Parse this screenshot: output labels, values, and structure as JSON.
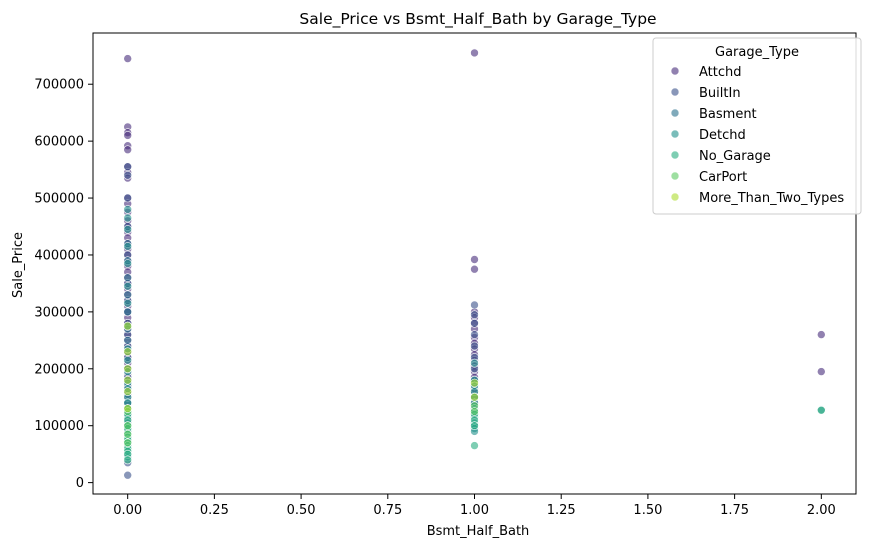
{
  "chart_data": {
    "type": "scatter",
    "title": "Sale_Price vs Bsmt_Half_Bath by Garage_Type",
    "xlabel": "Bsmt_Half_Bath",
    "ylabel": "Sale_Price",
    "xlim": [
      -0.1,
      2.1
    ],
    "ylim": [
      -20000,
      790000
    ],
    "x_ticks": [
      0.0,
      0.25,
      0.5,
      0.75,
      1.0,
      1.25,
      1.5,
      1.75,
      2.0
    ],
    "x_tick_labels": [
      "0.00",
      "0.25",
      "0.50",
      "0.75",
      "1.00",
      "1.25",
      "1.50",
      "1.75",
      "2.00"
    ],
    "y_ticks": [
      0,
      100000,
      200000,
      300000,
      400000,
      500000,
      600000,
      700000
    ],
    "y_tick_labels": [
      "0",
      "100000",
      "200000",
      "300000",
      "400000",
      "500000",
      "600000",
      "700000"
    ],
    "grid": false,
    "legend": {
      "title": "Garage_Type",
      "placement": "top-right"
    },
    "series": [
      {
        "name": "Attchd",
        "color": "#472d7b",
        "points": [
          [
            0,
            745000
          ],
          [
            0,
            625000
          ],
          [
            0,
            615000
          ],
          [
            0,
            610000
          ],
          [
            0,
            592000
          ],
          [
            0,
            585000
          ],
          [
            0,
            555000
          ],
          [
            0,
            545000
          ],
          [
            0,
            535000
          ],
          [
            0,
            500000
          ],
          [
            0,
            490000
          ],
          [
            0,
            475000
          ],
          [
            0,
            460000
          ],
          [
            0,
            450000
          ],
          [
            0,
            440000
          ],
          [
            0,
            430000
          ],
          [
            0,
            420000
          ],
          [
            0,
            410000
          ],
          [
            0,
            400000
          ],
          [
            0,
            390000
          ],
          [
            0,
            380000
          ],
          [
            0,
            370000
          ],
          [
            0,
            360000
          ],
          [
            0,
            350000
          ],
          [
            0,
            340000
          ],
          [
            0,
            330000
          ],
          [
            0,
            320000
          ],
          [
            0,
            310000
          ],
          [
            0,
            300000
          ],
          [
            0,
            290000
          ],
          [
            0,
            280000
          ],
          [
            0,
            270000
          ],
          [
            0,
            260000
          ],
          [
            0,
            250000
          ],
          [
            0,
            240000
          ],
          [
            0,
            230000
          ],
          [
            0,
            220000
          ],
          [
            0,
            210000
          ],
          [
            0,
            200000
          ],
          [
            0,
            190000
          ],
          [
            0,
            180000
          ],
          [
            0,
            170000
          ],
          [
            0,
            160000
          ],
          [
            0,
            150000
          ],
          [
            0,
            140000
          ],
          [
            0,
            130000
          ],
          [
            0,
            120000
          ],
          [
            0,
            110000
          ],
          [
            1,
            755000
          ],
          [
            1,
            392000
          ],
          [
            1,
            375000
          ],
          [
            1,
            300000
          ],
          [
            1,
            290000
          ],
          [
            1,
            280000
          ],
          [
            1,
            270000
          ],
          [
            1,
            255000
          ],
          [
            1,
            245000
          ],
          [
            1,
            235000
          ],
          [
            1,
            225000
          ],
          [
            1,
            215000
          ],
          [
            1,
            205000
          ],
          [
            1,
            195000
          ],
          [
            1,
            185000
          ],
          [
            1,
            175000
          ],
          [
            1,
            160000
          ],
          [
            1,
            150000
          ],
          [
            1,
            140000
          ],
          [
            1,
            130000
          ],
          [
            2,
            260000
          ],
          [
            2,
            195000
          ]
        ]
      },
      {
        "name": "BuiltIn",
        "color": "#3b528b",
        "points": [
          [
            0,
            555000
          ],
          [
            0,
            540000
          ],
          [
            0,
            500000
          ],
          [
            0,
            450000
          ],
          [
            0,
            400000
          ],
          [
            0,
            350000
          ],
          [
            0,
            320000
          ],
          [
            0,
            300000
          ],
          [
            0,
            280000
          ],
          [
            0,
            260000
          ],
          [
            0,
            240000
          ],
          [
            0,
            220000
          ],
          [
            0,
            200000
          ],
          [
            0,
            185000
          ],
          [
            0,
            170000
          ],
          [
            0,
            155000
          ],
          [
            0,
            35000
          ],
          [
            0,
            13000
          ],
          [
            1,
            312000
          ],
          [
            1,
            295000
          ],
          [
            1,
            280000
          ],
          [
            1,
            260000
          ],
          [
            1,
            240000
          ],
          [
            1,
            220000
          ],
          [
            1,
            200000
          ],
          [
            1,
            180000
          ],
          [
            1,
            165000
          ]
        ]
      },
      {
        "name": "Basment",
        "color": "#2c728e",
        "points": [
          [
            0,
            420000
          ],
          [
            0,
            390000
          ],
          [
            0,
            360000
          ],
          [
            0,
            330000
          ],
          [
            0,
            300000
          ],
          [
            0,
            270000
          ],
          [
            0,
            250000
          ],
          [
            0,
            230000
          ],
          [
            0,
            200000
          ],
          [
            0,
            180000
          ],
          [
            0,
            160000
          ],
          [
            0,
            140000
          ],
          [
            0,
            125000
          ],
          [
            1,
            175000
          ],
          [
            1,
            150000
          ],
          [
            1,
            135000
          ],
          [
            1,
            120000
          ]
        ]
      },
      {
        "name": "Detchd",
        "color": "#21918c",
        "points": [
          [
            0,
            480000
          ],
          [
            0,
            465000
          ],
          [
            0,
            445000
          ],
          [
            0,
            415000
          ],
          [
            0,
            385000
          ],
          [
            0,
            345000
          ],
          [
            0,
            315000
          ],
          [
            0,
            275000
          ],
          [
            0,
            235000
          ],
          [
            0,
            215000
          ],
          [
            0,
            195000
          ],
          [
            0,
            175000
          ],
          [
            0,
            165000
          ],
          [
            0,
            150000
          ],
          [
            0,
            140000
          ],
          [
            0,
            130000
          ],
          [
            0,
            120000
          ],
          [
            0,
            115000
          ],
          [
            0,
            105000
          ],
          [
            0,
            100000
          ],
          [
            0,
            95000
          ],
          [
            0,
            90000
          ],
          [
            0,
            80000
          ],
          [
            0,
            70000
          ],
          [
            0,
            60000
          ],
          [
            0,
            50000
          ],
          [
            0,
            45000
          ],
          [
            1,
            210000
          ],
          [
            1,
            180000
          ],
          [
            1,
            170000
          ],
          [
            1,
            160000
          ],
          [
            1,
            150000
          ],
          [
            1,
            140000
          ],
          [
            1,
            130000
          ],
          [
            1,
            125000
          ],
          [
            1,
            115000
          ],
          [
            1,
            105000
          ],
          [
            1,
            100000
          ],
          [
            1,
            95000
          ],
          [
            1,
            90000
          ],
          [
            2,
            128000
          ]
        ]
      },
      {
        "name": "No_Garage",
        "color": "#28ae80",
        "points": [
          [
            0,
            130000
          ],
          [
            0,
            120000
          ],
          [
            0,
            110000
          ],
          [
            0,
            100000
          ],
          [
            0,
            95000
          ],
          [
            0,
            85000
          ],
          [
            0,
            80000
          ],
          [
            0,
            75000
          ],
          [
            0,
            70000
          ],
          [
            0,
            65000
          ],
          [
            0,
            60000
          ],
          [
            0,
            55000
          ],
          [
            0,
            50000
          ],
          [
            0,
            40000
          ],
          [
            1,
            120000
          ],
          [
            1,
            110000
          ],
          [
            1,
            100000
          ],
          [
            1,
            65000
          ],
          [
            2,
            127000
          ]
        ]
      },
      {
        "name": "CarPort",
        "color": "#5ec962",
        "points": [
          [
            0,
            125000
          ],
          [
            0,
            100000
          ],
          [
            0,
            85000
          ],
          [
            0,
            70000
          ],
          [
            1,
            135000
          ],
          [
            1,
            125000
          ]
        ]
      },
      {
        "name": "More_Than_Two_Types",
        "color": "#addc30",
        "points": [
          [
            0,
            275000
          ],
          [
            0,
            230000
          ],
          [
            0,
            200000
          ],
          [
            0,
            180000
          ],
          [
            0,
            160000
          ],
          [
            0,
            130000
          ],
          [
            1,
            175000
          ],
          [
            1,
            150000
          ]
        ]
      }
    ]
  }
}
